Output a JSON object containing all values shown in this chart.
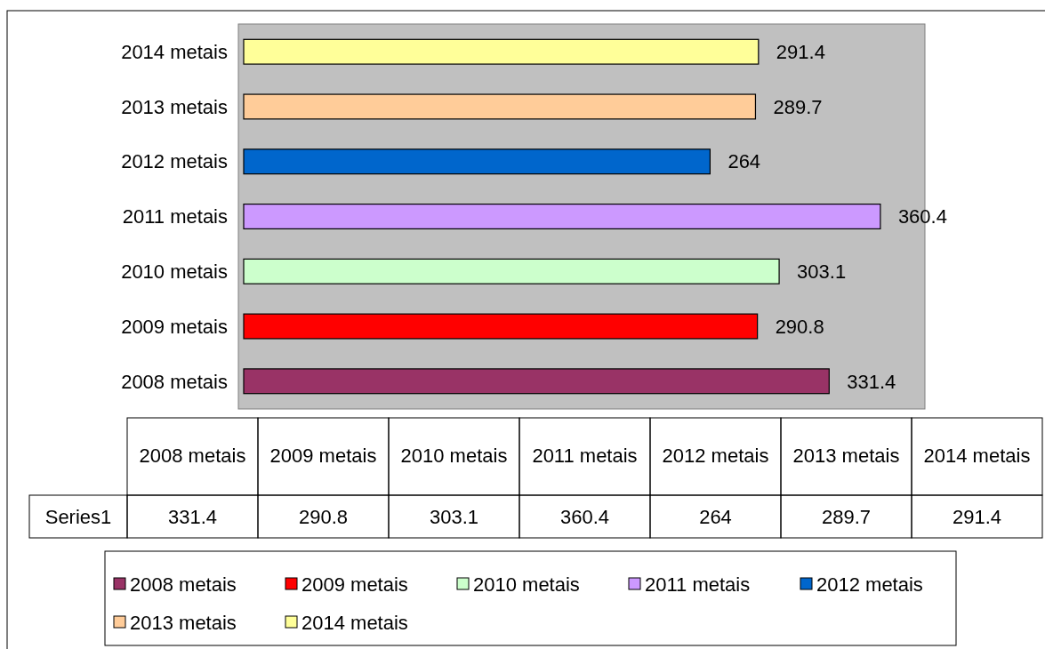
{
  "chart_data": [
    {
      "type": "bar",
      "orientation": "horizontal",
      "categories": [
        "2014 metais",
        "2013 metais",
        "2012 metais",
        "2011 metais",
        "2010 metais",
        "2009 metais",
        "2008 metais"
      ],
      "values": [
        291.4,
        289.7,
        264,
        360.4,
        303.1,
        290.8,
        331.4
      ],
      "colors": [
        "#ffff99",
        "#ffcc99",
        "#0066cc",
        "#cc99ff",
        "#ccffcc",
        "#ff0000",
        "#993366"
      ],
      "data_labels": true,
      "grid": false
    },
    {
      "type": "other",
      "categories": [
        "2008 metais",
        "2009 metais",
        "2010 metais",
        "2011 metais",
        "2012 metais",
        "2013 metais",
        "2014 metais"
      ],
      "series": [
        {
          "name": "Series1",
          "values": [
            331.4,
            290.8,
            303.1,
            360.4,
            264,
            289.7,
            291.4
          ]
        }
      ],
      "data_labels": true
    }
  ]
}
